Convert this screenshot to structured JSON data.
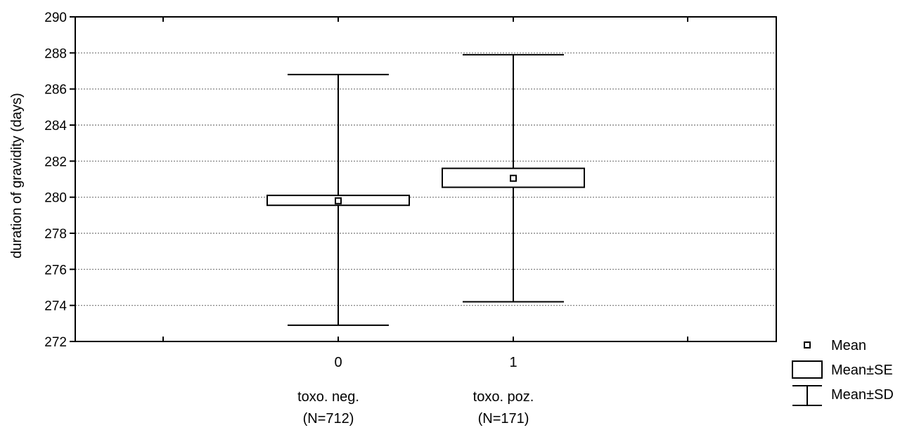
{
  "chart_data": {
    "type": "box",
    "title": "",
    "ylabel": "duration of gravidity (days)",
    "ylim": [
      272,
      290
    ],
    "yticks": [
      "272",
      "274",
      "276",
      "278",
      "280",
      "282",
      "284",
      "286",
      "288",
      "290"
    ],
    "grid": true,
    "categories": [
      {
        "tick": "0",
        "name": "toxo. neg.",
        "n": "(N=712)",
        "mean": 279.8,
        "se_low": 279.55,
        "se_high": 280.1,
        "sd_low": 272.9,
        "sd_high": 286.8
      },
      {
        "tick": "1",
        "name": "toxo. poz.",
        "n": "(N=171)",
        "mean": 281.05,
        "se_low": 280.55,
        "se_high": 281.6,
        "sd_low": 274.2,
        "sd_high": 287.9
      }
    ],
    "legend": {
      "position": "bottom-right",
      "items": [
        {
          "symbol": "square-marker",
          "label": "Mean"
        },
        {
          "symbol": "box",
          "label": "Mean±SE"
        },
        {
          "symbol": "whisker",
          "label": "Mean±SD"
        }
      ]
    }
  }
}
